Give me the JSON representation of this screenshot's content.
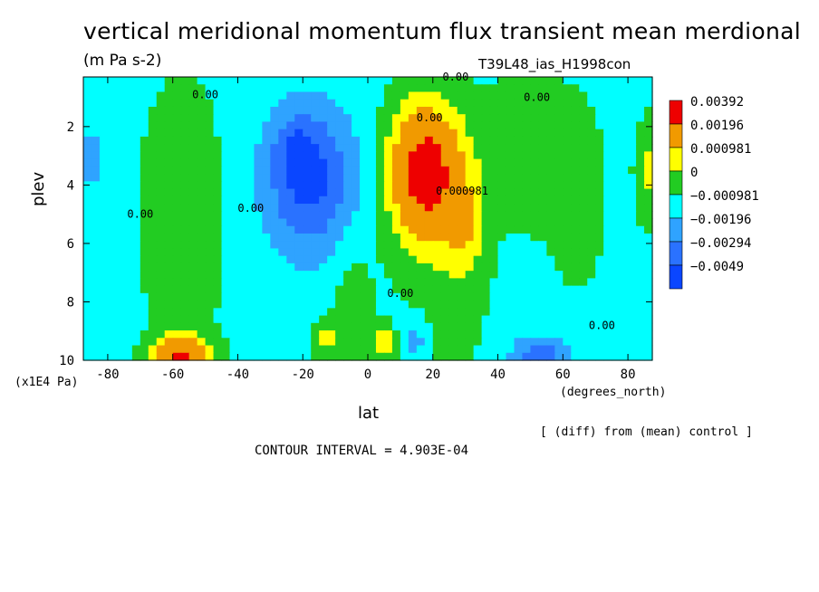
{
  "title": "vertical meridional momentum flux transient mean merdional",
  "units": "(m Pa s-2)",
  "run_id": "T39L48_ias_H1998con",
  "diff_note": "[ (diff) from (mean) control ]",
  "contour_interval_text": "CONTOUR INTERVAL = 4.903E-04",
  "chart_data": {
    "type": "heatmap",
    "title": "vertical meridional momentum flux transient mean merdional",
    "xlabel": "lat",
    "x_unit_label": "(degrees_north)",
    "ylabel": "plev",
    "y_unit_label": "(x1E4 Pa)",
    "xlim": [
      -87.5,
      87.5
    ],
    "ylim": [
      10,
      0.3
    ],
    "x_ticks": [
      -80,
      -60,
      -40,
      -20,
      0,
      20,
      40,
      60,
      80
    ],
    "y_ticks": [
      2,
      4,
      6,
      8,
      10
    ],
    "contour_interval": 0.0004903,
    "colorbar": {
      "levels": [
        "0.00392",
        "0.00196",
        "0.000981",
        "0",
        "−0.000981",
        "−0.00196",
        "−0.00294",
        "−0.0049"
      ],
      "colors": [
        "#ee0000",
        "#f19a00",
        "#ffff00",
        "#22cc22",
        "#00ffff",
        "#2fa3ff",
        "#2a72ff",
        "#0a46ff"
      ]
    },
    "contour_labels": [
      {
        "text": "0.00",
        "lat": 27,
        "plev": 0.3
      },
      {
        "text": "0.00",
        "lat": -50,
        "plev": 0.9
      },
      {
        "text": "0.00",
        "lat": 52,
        "plev": 1.0
      },
      {
        "text": "0.00",
        "lat": 19,
        "plev": 1.7
      },
      {
        "text": "0.00",
        "lat": -70,
        "plev": 5.0
      },
      {
        "text": "0.00",
        "lat": -36,
        "plev": 4.8
      },
      {
        "text": "0.000981",
        "lat": 29,
        "plev": 4.2
      },
      {
        "text": "0.00",
        "lat": 10,
        "plev": 7.7
      },
      {
        "text": "0.00",
        "lat": 72,
        "plev": 8.8
      }
    ],
    "features": [
      {
        "lat_range": [
          -34,
          -2
        ],
        "plev_range": [
          1.5,
          6.5
        ],
        "min_value": -0.00294,
        "note": "negative centre"
      },
      {
        "lat_range": [
          4,
          32
        ],
        "plev_range": [
          1.8,
          7.0
        ],
        "max_value": 0.00392,
        "note": "positive centre"
      },
      {
        "lat_range": [
          -66,
          -48
        ],
        "plev_range": [
          9.3,
          10
        ],
        "max_value": 0.00392,
        "note": "positive near surface"
      },
      {
        "lat_range": [
          48,
          62
        ],
        "plev_range": [
          9.4,
          10
        ],
        "min_value": -0.00196,
        "note": "negative near surface"
      }
    ]
  }
}
